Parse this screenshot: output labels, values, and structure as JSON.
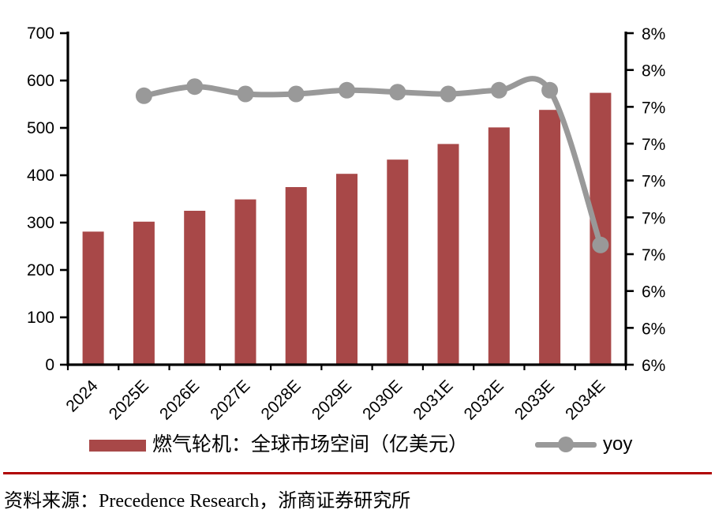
{
  "chart_data": {
    "type": "bar+line combo",
    "categories": [
      "2024",
      "2025E",
      "2026E",
      "2027E",
      "2028E",
      "2029E",
      "2030E",
      "2031E",
      "2032E",
      "2033E",
      "2034E"
    ],
    "series": [
      {
        "name": "燃气轮机：全球市场空间（亿美元）",
        "type": "bar",
        "axis": "left",
        "values": [
          281,
          302,
          325,
          349,
          375,
          403,
          433,
          466,
          501,
          538,
          574
        ]
      },
      {
        "name": "yoy",
        "type": "line",
        "axis": "right",
        "values": [
          null,
          7.46,
          7.51,
          7.47,
          7.47,
          7.49,
          7.48,
          7.47,
          7.49,
          7.49,
          6.65
        ]
      }
    ],
    "left_axis": {
      "min": 0,
      "max": 700,
      "step": 100,
      "tick_labels_top_to_bottom": [
        "700",
        "600",
        "500",
        "400",
        "300",
        "200",
        "100",
        "0"
      ]
    },
    "right_axis": {
      "min": 6.0,
      "max": 7.8,
      "step": 0.2,
      "tick_labels_top_to_bottom": [
        "8%",
        "8%",
        "7%",
        "7%",
        "7%",
        "7%",
        "7%",
        "6%",
        "6%",
        "6%"
      ]
    },
    "grid": "off",
    "legend_position": "bottom",
    "title": ""
  },
  "legend": {
    "bar_label": "燃气轮机：全球市场空间（亿美元）",
    "line_label": "yoy"
  },
  "footer": {
    "source_text": "资料来源：Precedence Research，浙商证券研究所"
  },
  "colors": {
    "bar": "#A84848",
    "line": "#999999",
    "axis": "#000000",
    "source_rule": "#B00000"
  }
}
